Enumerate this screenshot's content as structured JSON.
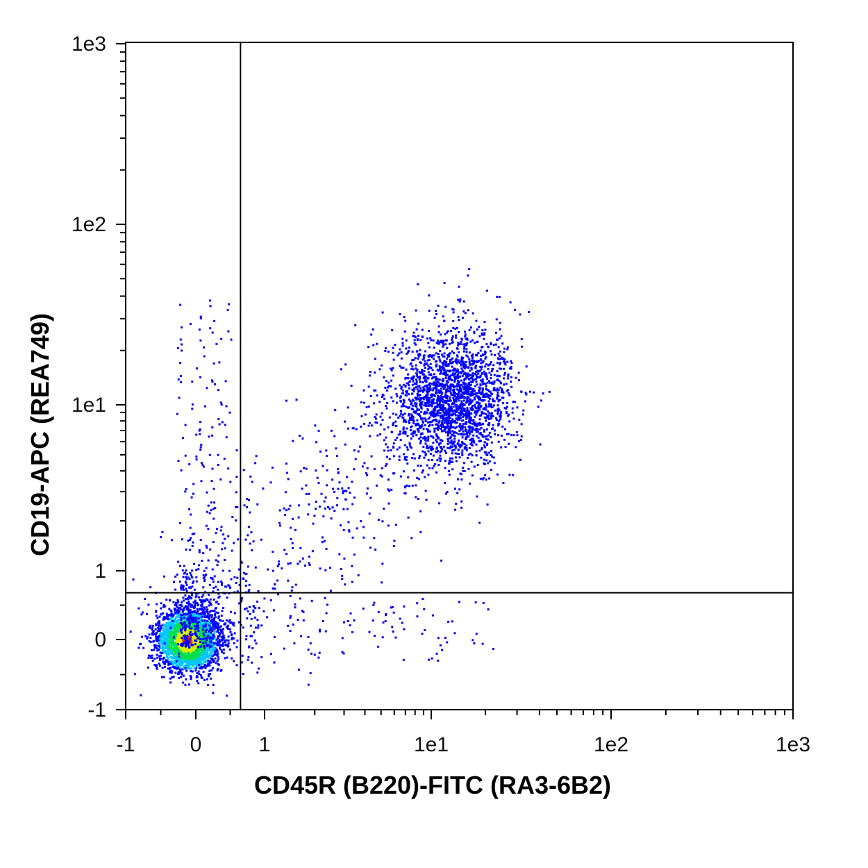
{
  "chart_data": {
    "type": "scatter",
    "title": "",
    "xlabel": "CD45R (B220)-FITC (RA3-6B2)",
    "ylabel": "CD19-APC (REA749)",
    "scale": "biexponential",
    "xlim": [
      -1,
      1000
    ],
    "ylim": [
      -1,
      1000
    ],
    "x_ticks": [
      {
        "value": -1,
        "label": "-1"
      },
      {
        "value": 0,
        "label": "0"
      },
      {
        "value": 1,
        "label": "1"
      },
      {
        "value": 10,
        "label": "1e1"
      },
      {
        "value": 100,
        "label": "1e2"
      },
      {
        "value": 1000,
        "label": "1e3"
      }
    ],
    "y_ticks": [
      {
        "value": -1,
        "label": "-1"
      },
      {
        "value": 0,
        "label": "0"
      },
      {
        "value": 1,
        "label": "1"
      },
      {
        "value": 10,
        "label": "1e1"
      },
      {
        "value": 100,
        "label": "1e2"
      },
      {
        "value": 1000,
        "label": "1e3"
      }
    ],
    "quadrant_gate": {
      "x": 0.65,
      "y": 0.68
    },
    "grid": false,
    "legend": "none",
    "colormap": [
      "#0000ff",
      "#00c8ff",
      "#00e050",
      "#d8f000",
      "#ff3000"
    ],
    "populations": [
      {
        "name_hint": "double-negative",
        "x": 0.0,
        "y": 0.0,
        "density": "high"
      },
      {
        "name_hint": "double-positive",
        "x": 13,
        "y": 11,
        "density": "medium"
      }
    ]
  }
}
